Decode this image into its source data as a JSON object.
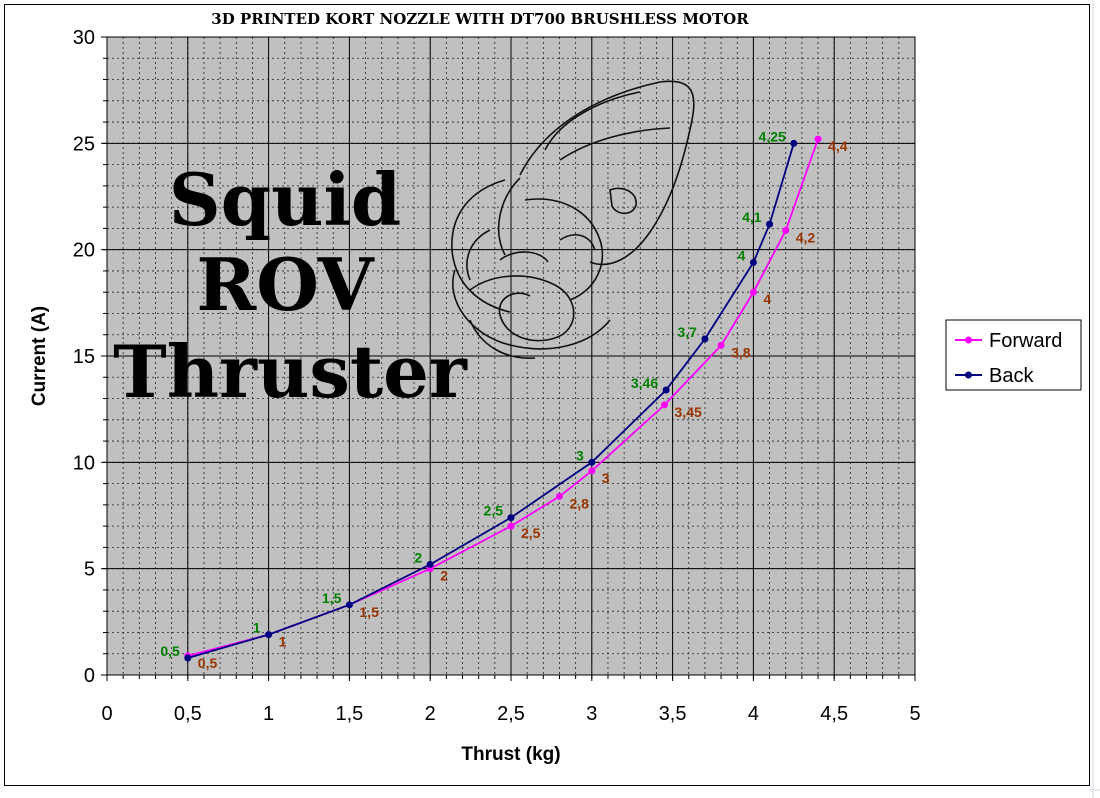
{
  "branding": {
    "line1": "Squid",
    "line2": "ROV",
    "line3": "Thruster"
  },
  "icons": [
    "squid-sketch-icon"
  ],
  "chart_data": {
    "type": "line",
    "title": "3D PRINTED KORT NOZZLE WITH DT700 BRUSHLESS MOTOR",
    "xlabel": "Thrust (kg)",
    "ylabel": "Current (A)",
    "xlim": [
      0,
      5
    ],
    "ylim": [
      0,
      30
    ],
    "x_major_step": 0.5,
    "y_major_step": 5,
    "x_tick_labels": [
      "0",
      "0,5",
      "1",
      "1,5",
      "2",
      "2,5",
      "3",
      "3,5",
      "4",
      "4,5",
      "5"
    ],
    "y_tick_labels": [
      "0",
      "5",
      "10",
      "15",
      "20",
      "25",
      "30"
    ],
    "grid": true,
    "plot_background": "#c0c0c0",
    "legend_position": "right",
    "series": [
      {
        "name": "Forward",
        "color": "#ff00ff",
        "label_color": "#993300",
        "x": [
          0.5,
          1,
          1.5,
          2,
          2.5,
          2.8,
          3,
          3.45,
          3.8,
          4,
          4.2,
          4.4
        ],
        "y": [
          0.9,
          1.9,
          3.3,
          5.0,
          7.0,
          8.4,
          9.6,
          12.7,
          15.5,
          18.0,
          20.9,
          25.2
        ],
        "labels": [
          "0,5",
          "1",
          "1,5",
          "2",
          "2,5",
          "2,8",
          "3",
          "3,45",
          "3,8",
          "4",
          "4,2",
          "4,4"
        ]
      },
      {
        "name": "Back",
        "color": "#000080",
        "label_color": "#008000",
        "x": [
          0.5,
          1,
          1.5,
          2,
          2.5,
          3,
          3.46,
          3.7,
          4,
          4.1,
          4.25
        ],
        "y": [
          0.8,
          1.9,
          3.3,
          5.2,
          7.4,
          10.0,
          13.4,
          15.8,
          19.4,
          21.2,
          25.0
        ],
        "labels": [
          "0,5",
          "1",
          "1,5",
          "2",
          "2,5",
          "3",
          "3,46",
          "3,7",
          "4",
          "4,1",
          "4,25"
        ]
      }
    ]
  }
}
